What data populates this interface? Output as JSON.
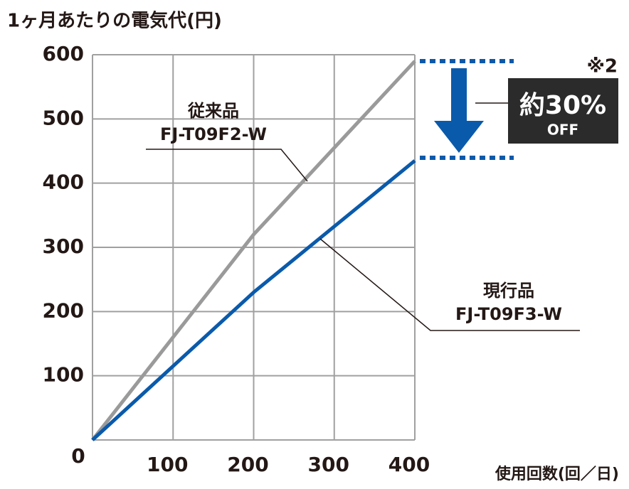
{
  "chart_data": {
    "type": "line",
    "title": "1ヶ月あたりの電気代(円)",
    "x_label": "使用回数(回／日)",
    "x": [
      0,
      200,
      400
    ],
    "xlim": [
      0,
      400
    ],
    "xticks": [
      0,
      100,
      200,
      300,
      400
    ],
    "ylim": [
      0,
      600
    ],
    "yticks": [
      100,
      200,
      300,
      400,
      500,
      600
    ],
    "grid": true,
    "series": [
      {
        "name": "従来品",
        "model": "FJ-T09F2-W",
        "color": "#9a9a9a",
        "values": [
          0,
          320,
          590
        ]
      },
      {
        "name": "現行品",
        "model": "FJ-T09F3-W",
        "color": "#0a5aab",
        "values": [
          0,
          230,
          435
        ]
      }
    ],
    "note": "※2",
    "badge": {
      "text": "約30%",
      "sub": "OFF"
    }
  }
}
